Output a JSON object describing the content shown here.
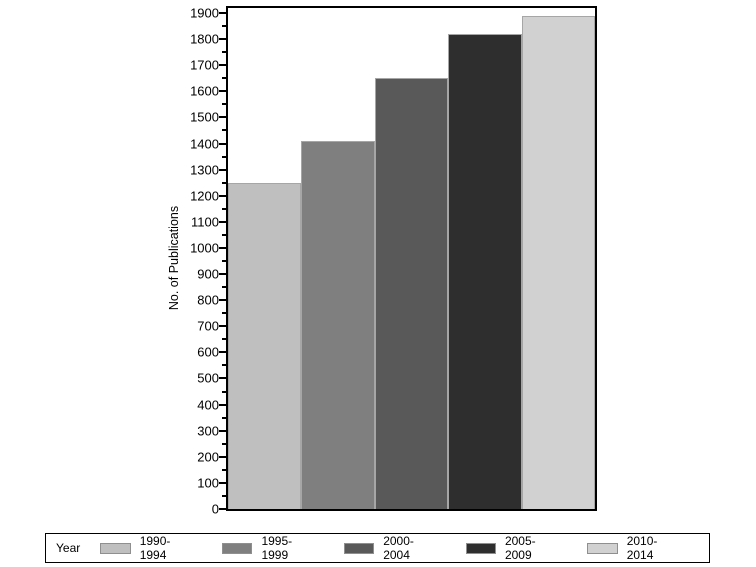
{
  "chart_data": {
    "type": "bar",
    "title": "",
    "xlabel": "",
    "ylabel": "No. of Publications",
    "categories": [
      "1990-1994",
      "1995-1999",
      "2000-2004",
      "2005-2009",
      "2010-2014"
    ],
    "values": [
      1250,
      1410,
      1650,
      1820,
      1890
    ],
    "bar_colors": [
      "#bfbfbf",
      "#7f7f7f",
      "#595959",
      "#2e2e2e",
      "#d1d1d1"
    ],
    "ylim": [
      0,
      1900
    ],
    "yticks": [
      0,
      100,
      200,
      300,
      400,
      500,
      600,
      700,
      800,
      900,
      1000,
      1100,
      1200,
      1300,
      1400,
      1500,
      1600,
      1700,
      1800,
      1900
    ],
    "ytick_minor_step": 50,
    "grid": false,
    "frame_color": "#000000",
    "background": "#ffffff",
    "legend": {
      "title": "Year",
      "position": "bottom",
      "entries": [
        "1990-1994",
        "1995-1999",
        "2000-2004",
        "2005-2009",
        "2010-2014"
      ]
    }
  }
}
